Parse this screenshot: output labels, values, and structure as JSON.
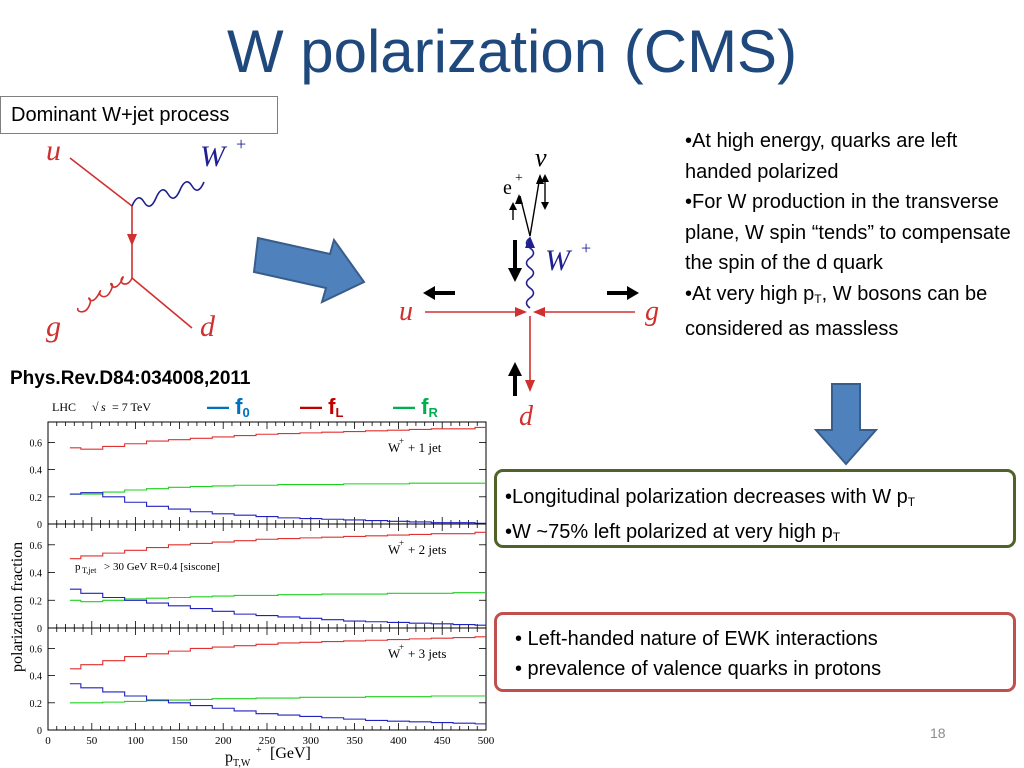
{
  "slide": {
    "title": "W polarization (CMS)",
    "page_number": "18"
  },
  "process_label": "Dominant W+jet process",
  "reference": "Phys.Rev.D84:034008,2011",
  "feynman": {
    "u": "u",
    "g": "g",
    "d": "d",
    "w": "W",
    "w_charge": "+"
  },
  "spin_diagram": {
    "nu": "ν",
    "e": "e",
    "e_charge": "+",
    "w": "W",
    "w_charge": "+",
    "u": "u",
    "g": "g",
    "d": "d"
  },
  "bullets_top": [
    {
      "text": "•At high energy, quarks are left handed polarized"
    },
    {
      "text": "•For W production in the transverse plane, W spin “tends” to compensate the spin of the d quark"
    },
    {
      "pre": "•At very high p",
      "sub": "T",
      "post": ", W bosons can be considered as massless"
    }
  ],
  "box_green": [
    {
      "pre": "•Longitudinal polarization decreases with W p",
      "sub": "T"
    },
    {
      "pre": "•W ~75% left polarized at very high p",
      "sub": "T"
    }
  ],
  "box_red": [
    "• Left-handed nature of EWK interactions",
    "• prevalence of valence quarks in protons"
  ],
  "legend": [
    {
      "mark": "—",
      "label": "f",
      "sub": "0",
      "color": "#0070c0"
    },
    {
      "mark": "—",
      "label": "f",
      "sub": "L",
      "color": "#c00000"
    },
    {
      "mark": "—",
      "label": "f",
      "sub": "R",
      "color": "#00b050"
    }
  ],
  "chart_data": {
    "type": "line",
    "ylabel": "polarization fraction",
    "xlabel": "p_T,W+ [GeV]",
    "xlabel_parts": {
      "p": "p",
      "sub": "T,W",
      "sup": "+",
      "unit": "[GeV]"
    },
    "header": "LHC √s = 7 TeV",
    "header_parts": {
      "lhc": "LHC",
      "sqrt": "√",
      "s": "s",
      "eq": "= 7 TeV"
    },
    "xlim": [
      0,
      500
    ],
    "x_ticks": [
      "0",
      "50",
      "100",
      "150",
      "200",
      "250",
      "300",
      "350",
      "400",
      "450",
      "500"
    ],
    "y_ticks": [
      "0",
      "0.2",
      "0.4",
      "0.6"
    ],
    "colors": {
      "f0": "#2020c0",
      "fL": "#e03030",
      "fR": "#20d020"
    },
    "panels": [
      {
        "label": "W+ + 1 jet",
        "label_parts": {
          "w": "W",
          "sup": "+",
          "rest": "+ 1 jet"
        },
        "note": "",
        "ylim": [
          0,
          0.75
        ],
        "x": [
          25,
          50,
          75,
          100,
          125,
          150,
          175,
          200,
          225,
          250,
          275,
          300,
          325,
          350,
          375,
          400,
          425,
          450,
          475,
          500
        ],
        "series": [
          {
            "key": "fL",
            "values": [
              0.56,
              0.55,
              0.57,
              0.59,
              0.61,
              0.62,
              0.63,
              0.64,
              0.65,
              0.66,
              0.665,
              0.67,
              0.675,
              0.68,
              0.685,
              0.69,
              0.695,
              0.7,
              0.7,
              0.71
            ]
          },
          {
            "key": "fR",
            "values": [
              0.22,
              0.22,
              0.235,
              0.25,
              0.26,
              0.27,
              0.275,
              0.28,
              0.285,
              0.285,
              0.29,
              0.29,
              0.29,
              0.295,
              0.295,
              0.295,
              0.3,
              0.3,
              0.3,
              0.3
            ]
          },
          {
            "key": "f0",
            "values": [
              0.22,
              0.23,
              0.2,
              0.16,
              0.13,
              0.11,
              0.09,
              0.075,
              0.065,
              0.055,
              0.045,
              0.04,
              0.035,
              0.03,
              0.025,
              0.02,
              0.015,
              0.01,
              0.01,
              0.005
            ]
          }
        ]
      },
      {
        "label": "W+ + 2 jets",
        "label_parts": {
          "w": "W",
          "sup": "+",
          "rest": "+ 2 jets"
        },
        "note": "p_T,jet > 30 GeV   R=0.4 [siscone]",
        "note_parts": {
          "p": "p",
          "sub": "T,jet",
          "rest": "> 30 GeV   R=0.4 [siscone]"
        },
        "ylim": [
          0,
          0.75
        ],
        "x": [
          25,
          50,
          75,
          100,
          125,
          150,
          175,
          200,
          225,
          250,
          275,
          300,
          325,
          350,
          375,
          400,
          425,
          450,
          475,
          500
        ],
        "series": [
          {
            "key": "fL",
            "values": [
              0.5,
              0.52,
              0.54,
              0.56,
              0.58,
              0.6,
              0.61,
              0.62,
              0.63,
              0.64,
              0.645,
              0.65,
              0.655,
              0.66,
              0.665,
              0.67,
              0.675,
              0.68,
              0.68,
              0.69
            ]
          },
          {
            "key": "fR",
            "values": [
              0.2,
              0.19,
              0.2,
              0.21,
              0.215,
              0.22,
              0.225,
              0.23,
              0.235,
              0.235,
              0.24,
              0.24,
              0.245,
              0.245,
              0.245,
              0.25,
              0.25,
              0.25,
              0.255,
              0.255
            ]
          },
          {
            "key": "f0",
            "values": [
              0.28,
              0.25,
              0.22,
              0.2,
              0.18,
              0.16,
              0.14,
              0.12,
              0.1,
              0.09,
              0.08,
              0.07,
              0.06,
              0.05,
              0.045,
              0.04,
              0.035,
              0.03,
              0.025,
              0.02
            ]
          }
        ]
      },
      {
        "label": "W+ + 3 jets",
        "label_parts": {
          "w": "W",
          "sup": "+",
          "rest": "+ 3 jets"
        },
        "note": "",
        "ylim": [
          0,
          0.75
        ],
        "x": [
          25,
          50,
          75,
          100,
          125,
          150,
          175,
          200,
          225,
          250,
          275,
          300,
          325,
          350,
          375,
          400,
          425,
          450,
          475,
          500
        ],
        "series": [
          {
            "key": "fL",
            "values": [
              0.45,
              0.48,
              0.51,
              0.54,
              0.56,
              0.58,
              0.6,
              0.61,
              0.62,
              0.63,
              0.64,
              0.645,
              0.65,
              0.655,
              0.66,
              0.665,
              0.67,
              0.675,
              0.68,
              0.685
            ]
          },
          {
            "key": "fR",
            "values": [
              0.2,
              0.2,
              0.205,
              0.21,
              0.215,
              0.22,
              0.225,
              0.23,
              0.23,
              0.235,
              0.235,
              0.24,
              0.24,
              0.24,
              0.245,
              0.245,
              0.245,
              0.25,
              0.25,
              0.25
            ]
          },
          {
            "key": "f0",
            "values": [
              0.34,
              0.31,
              0.28,
              0.25,
              0.22,
              0.2,
              0.18,
              0.16,
              0.14,
              0.12,
              0.11,
              0.1,
              0.09,
              0.08,
              0.07,
              0.065,
              0.06,
              0.055,
              0.05,
              0.045
            ]
          }
        ]
      }
    ]
  }
}
